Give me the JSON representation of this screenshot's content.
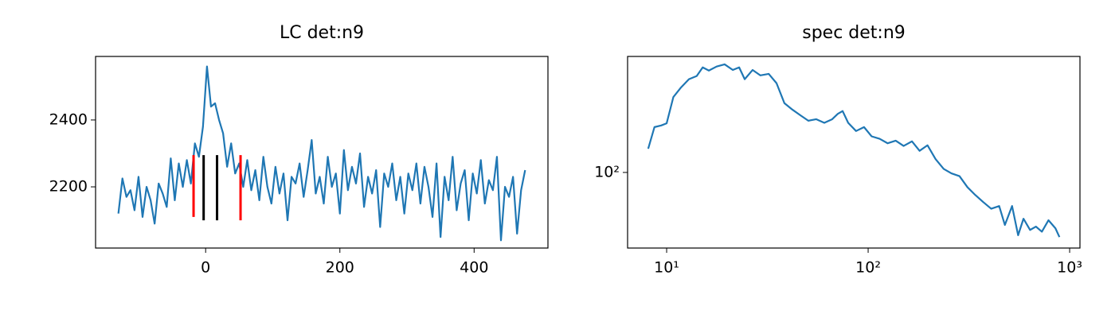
{
  "chart_data": [
    {
      "type": "line",
      "title": "LC det:n9",
      "x": [
        -130,
        -124,
        -118,
        -112,
        -106,
        -100,
        -94,
        -88,
        -82,
        -76,
        -70,
        -64,
        -58,
        -52,
        -46,
        -40,
        -34,
        -28,
        -22,
        -16,
        -10,
        -4,
        2,
        8,
        14,
        20,
        26,
        32,
        38,
        44,
        50,
        56,
        62,
        68,
        74,
        80,
        86,
        92,
        98,
        104,
        110,
        116,
        122,
        128,
        134,
        140,
        146,
        152,
        158,
        164,
        170,
        176,
        182,
        188,
        194,
        200,
        206,
        212,
        218,
        224,
        230,
        236,
        242,
        248,
        254,
        260,
        266,
        272,
        278,
        284,
        290,
        296,
        302,
        308,
        314,
        320,
        326,
        332,
        338,
        344,
        350,
        356,
        362,
        368,
        374,
        380,
        386,
        392,
        398,
        404,
        410,
        416,
        422,
        428,
        434,
        440,
        446,
        452,
        458,
        464,
        470,
        476
      ],
      "values": [
        2120,
        2225,
        2170,
        2190,
        2130,
        2230,
        2110,
        2200,
        2160,
        2090,
        2210,
        2180,
        2140,
        2285,
        2160,
        2270,
        2200,
        2280,
        2210,
        2330,
        2290,
        2380,
        2560,
        2440,
        2450,
        2400,
        2360,
        2260,
        2330,
        2240,
        2270,
        2200,
        2280,
        2190,
        2250,
        2160,
        2290,
        2200,
        2150,
        2260,
        2180,
        2240,
        2100,
        2230,
        2210,
        2270,
        2170,
        2250,
        2340,
        2180,
        2230,
        2150,
        2290,
        2200,
        2240,
        2120,
        2310,
        2190,
        2260,
        2210,
        2300,
        2140,
        2230,
        2180,
        2250,
        2080,
        2240,
        2200,
        2270,
        2160,
        2230,
        2120,
        2240,
        2190,
        2270,
        2150,
        2260,
        2200,
        2110,
        2270,
        2050,
        2230,
        2160,
        2290,
        2130,
        2210,
        2250,
        2100,
        2240,
        2180,
        2280,
        2150,
        2220,
        2190,
        2290,
        2040,
        2200,
        2170,
        2230,
        2060,
        2190,
        2250
      ],
      "color": "#1f77b4",
      "vlines": [
        {
          "x": -18,
          "ymin": 2110,
          "ymax": 2295,
          "color": "#ff0000"
        },
        {
          "x": 52,
          "ymin": 2100,
          "ymax": 2295,
          "color": "#ff0000"
        },
        {
          "x": -3,
          "ymin": 2100,
          "ymax": 2295,
          "color": "#000000"
        },
        {
          "x": 17,
          "ymin": 2100,
          "ymax": 2295,
          "color": "#000000"
        }
      ],
      "xlim": [
        -164,
        510
      ],
      "ylim": [
        2017,
        2590
      ],
      "xticks": [
        0,
        200,
        400
      ],
      "yticks": [
        2200,
        2400
      ]
    },
    {
      "type": "line",
      "title": "spec det:n9",
      "xscale": "log",
      "yscale": "log",
      "x": [
        8.1,
        8.7,
        9.4,
        10,
        10.8,
        11.8,
        12.9,
        14.1,
        15.1,
        16.2,
        17.7,
        19.4,
        21.3,
        22.9,
        24.4,
        26.7,
        29.2,
        32.1,
        35.1,
        38.4,
        42.1,
        46.1,
        50.5,
        55.3,
        60.6,
        66.3,
        70.7,
        74.7,
        79.6,
        87.1,
        95.4,
        104,
        114,
        125,
        137,
        150,
        165,
        180,
        197,
        216,
        237,
        259,
        284,
        311,
        340,
        373,
        408,
        447,
        477,
        518,
        555,
        590,
        636,
        680,
        728,
        785,
        850,
        890
      ],
      "values": [
        130,
        165,
        168,
        172,
        230,
        256,
        280,
        290,
        319,
        308,
        322,
        330,
        310,
        319,
        280,
        310,
        292,
        297,
        268,
        215,
        200,
        188,
        177,
        180,
        173,
        180,
        191,
        197,
        173,
        158,
        165,
        149,
        145,
        138,
        142,
        134,
        141,
        127,
        135,
        116,
        104,
        99,
        96,
        85,
        78,
        72,
        67,
        69,
        56,
        69,
        50,
        60,
        53,
        55,
        52,
        59,
        54,
        49
      ],
      "color": "#1f77b4",
      "xlim": [
        6.4,
        1125
      ],
      "ylim": [
        43.4,
        360
      ],
      "xticks": [
        {
          "value": 10,
          "label": "10¹"
        },
        {
          "value": 100,
          "label": "10²"
        },
        {
          "value": 1000,
          "label": "10³"
        }
      ],
      "yticks": [
        {
          "value": 100,
          "label": "10²"
        }
      ]
    }
  ]
}
